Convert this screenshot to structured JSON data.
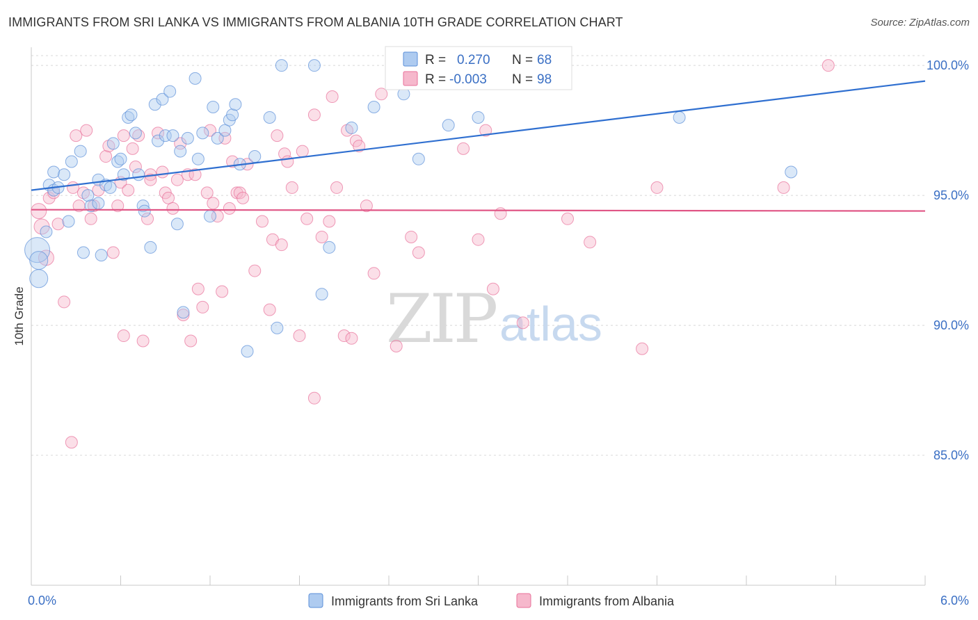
{
  "title": "IMMIGRANTS FROM SRI LANKA VS IMMIGRANTS FROM ALBANIA 10TH GRADE CORRELATION CHART",
  "source": "Source: ZipAtlas.com",
  "watermark": {
    "zip": "ZIP",
    "atlas": "atlas"
  },
  "colors": {
    "blue": "#5b8fd8",
    "blue_fill": "#aecbf0",
    "pink": "#e8709a",
    "pink_fill": "#f6b8cc",
    "axis_text": "#3a6fc4",
    "grid": "#d8d8d8"
  },
  "legend_box": {
    "rows": [
      {
        "r_label": "R =",
        "r_value": "0.270",
        "n_label": "N =",
        "n_value": "68"
      },
      {
        "r_label": "R =",
        "r_value": "-0.003",
        "n_label": "N =",
        "n_value": "98"
      }
    ]
  },
  "chart_data": {
    "type": "scatter",
    "xlabel": "",
    "ylabel": "10th Grade",
    "xlim": [
      0.0,
      6.0
    ],
    "ylim": [
      80.0,
      100.7
    ],
    "x_tick_labels": [
      "0.0%",
      "6.0%"
    ],
    "y_ticks": [
      85.0,
      90.0,
      95.0,
      100.0
    ],
    "y_tick_labels": [
      "85.0%",
      "90.0%",
      "95.0%",
      "100.0%"
    ],
    "grid": true,
    "legend_position": "bottom",
    "series": [
      {
        "name": "Immigrants from Sri Lanka",
        "color": "#5b8fd8",
        "trend": {
          "x": [
            0.0,
            6.0
          ],
          "y": [
            95.2,
            99.4
          ]
        },
        "points": [
          [
            0.04,
            92.9
          ],
          [
            0.05,
            92.5
          ],
          [
            0.05,
            91.8
          ],
          [
            0.1,
            93.6
          ],
          [
            0.12,
            95.4
          ],
          [
            0.15,
            95.2
          ],
          [
            0.15,
            95.9
          ],
          [
            0.22,
            95.8
          ],
          [
            0.25,
            94.0
          ],
          [
            0.27,
            96.3
          ],
          [
            0.33,
            96.7
          ],
          [
            0.35,
            92.8
          ],
          [
            0.38,
            95.0
          ],
          [
            0.4,
            94.6
          ],
          [
            0.45,
            94.7
          ],
          [
            0.45,
            95.6
          ],
          [
            0.47,
            92.7
          ],
          [
            0.5,
            95.4
          ],
          [
            0.53,
            95.3
          ],
          [
            0.55,
            97.0
          ],
          [
            0.58,
            96.3
          ],
          [
            0.6,
            96.4
          ],
          [
            0.62,
            95.8
          ],
          [
            0.65,
            98.0
          ],
          [
            0.67,
            98.1
          ],
          [
            0.7,
            97.4
          ],
          [
            0.72,
            95.8
          ],
          [
            0.75,
            94.6
          ],
          [
            0.76,
            94.4
          ],
          [
            0.8,
            93.0
          ],
          [
            0.83,
            98.5
          ],
          [
            0.85,
            97.1
          ],
          [
            0.88,
            98.7
          ],
          [
            0.9,
            97.3
          ],
          [
            0.93,
            99.0
          ],
          [
            0.95,
            97.3
          ],
          [
            0.98,
            93.9
          ],
          [
            1.0,
            96.7
          ],
          [
            1.02,
            90.5
          ],
          [
            1.05,
            97.2
          ],
          [
            1.1,
            99.5
          ],
          [
            1.12,
            96.4
          ],
          [
            1.15,
            97.4
          ],
          [
            1.2,
            94.2
          ],
          [
            1.22,
            98.4
          ],
          [
            1.25,
            97.2
          ],
          [
            1.3,
            97.5
          ],
          [
            1.33,
            97.9
          ],
          [
            1.35,
            98.1
          ],
          [
            1.37,
            98.5
          ],
          [
            1.4,
            96.2
          ],
          [
            1.45,
            89.0
          ],
          [
            1.5,
            96.5
          ],
          [
            1.6,
            98.0
          ],
          [
            1.65,
            89.9
          ],
          [
            1.68,
            100.0
          ],
          [
            1.9,
            100.0
          ],
          [
            1.95,
            91.2
          ],
          [
            2.0,
            93.0
          ],
          [
            2.15,
            97.6
          ],
          [
            2.3,
            98.4
          ],
          [
            2.5,
            98.9
          ],
          [
            2.6,
            96.4
          ],
          [
            2.8,
            97.7
          ],
          [
            3.0,
            98.0
          ],
          [
            4.35,
            98.0
          ],
          [
            5.1,
            95.9
          ],
          [
            0.18,
            95.3
          ]
        ]
      },
      {
        "name": "Immigrants from Albania",
        "color": "#e8709a",
        "trend": {
          "x": [
            0.0,
            6.0
          ],
          "y": [
            94.45,
            94.4
          ]
        },
        "points": [
          [
            0.05,
            94.4
          ],
          [
            0.07,
            93.8
          ],
          [
            0.1,
            92.6
          ],
          [
            0.12,
            94.9
          ],
          [
            0.15,
            95.1
          ],
          [
            0.18,
            93.9
          ],
          [
            0.22,
            90.9
          ],
          [
            0.28,
            95.3
          ],
          [
            0.32,
            94.6
          ],
          [
            0.35,
            95.1
          ],
          [
            0.37,
            97.5
          ],
          [
            0.4,
            94.1
          ],
          [
            0.42,
            94.6
          ],
          [
            0.45,
            95.2
          ],
          [
            0.5,
            96.5
          ],
          [
            0.52,
            96.9
          ],
          [
            0.55,
            92.8
          ],
          [
            0.58,
            94.6
          ],
          [
            0.6,
            95.5
          ],
          [
            0.62,
            97.3
          ],
          [
            0.65,
            95.2
          ],
          [
            0.68,
            96.8
          ],
          [
            0.7,
            96.1
          ],
          [
            0.72,
            97.3
          ],
          [
            0.75,
            89.4
          ],
          [
            0.78,
            94.1
          ],
          [
            0.8,
            95.8
          ],
          [
            0.85,
            97.4
          ],
          [
            0.88,
            95.9
          ],
          [
            0.9,
            95.1
          ],
          [
            0.92,
            94.9
          ],
          [
            0.95,
            94.5
          ],
          [
            0.98,
            95.6
          ],
          [
            1.0,
            97.0
          ],
          [
            1.02,
            90.4
          ],
          [
            1.05,
            95.8
          ],
          [
            1.07,
            89.4
          ],
          [
            1.1,
            95.8
          ],
          [
            1.12,
            91.4
          ],
          [
            1.15,
            90.7
          ],
          [
            1.18,
            95.1
          ],
          [
            1.2,
            97.5
          ],
          [
            1.22,
            94.7
          ],
          [
            1.25,
            94.2
          ],
          [
            1.28,
            91.3
          ],
          [
            1.3,
            97.2
          ],
          [
            1.33,
            94.5
          ],
          [
            1.35,
            96.3
          ],
          [
            1.38,
            95.1
          ],
          [
            1.4,
            95.1
          ],
          [
            1.42,
            94.9
          ],
          [
            1.45,
            96.2
          ],
          [
            1.5,
            92.1
          ],
          [
            1.55,
            94.0
          ],
          [
            1.6,
            90.6
          ],
          [
            1.62,
            93.3
          ],
          [
            1.65,
            97.3
          ],
          [
            1.68,
            93.1
          ],
          [
            1.7,
            96.6
          ],
          [
            1.72,
            96.3
          ],
          [
            1.75,
            95.3
          ],
          [
            1.8,
            89.6
          ],
          [
            1.82,
            96.7
          ],
          [
            1.85,
            94.1
          ],
          [
            1.9,
            87.2
          ],
          [
            1.95,
            93.4
          ],
          [
            2.0,
            94.0
          ],
          [
            2.02,
            98.8
          ],
          [
            2.05,
            95.3
          ],
          [
            2.1,
            89.6
          ],
          [
            2.12,
            97.5
          ],
          [
            2.15,
            89.5
          ],
          [
            2.18,
            97.1
          ],
          [
            2.2,
            96.9
          ],
          [
            2.25,
            94.6
          ],
          [
            2.3,
            92.0
          ],
          [
            2.35,
            98.9
          ],
          [
            2.45,
            89.2
          ],
          [
            2.5,
            100.0
          ],
          [
            2.55,
            93.4
          ],
          [
            2.6,
            92.8
          ],
          [
            3.0,
            93.3
          ],
          [
            3.05,
            97.5
          ],
          [
            3.1,
            91.4
          ],
          [
            3.15,
            94.3
          ],
          [
            3.3,
            90.1
          ],
          [
            3.6,
            94.1
          ],
          [
            3.75,
            93.2
          ],
          [
            4.1,
            89.1
          ],
          [
            4.2,
            95.3
          ],
          [
            5.35,
            100.0
          ],
          [
            5.05,
            95.3
          ],
          [
            0.27,
            85.5
          ],
          [
            1.9,
            98.1
          ],
          [
            2.9,
            96.8
          ],
          [
            0.3,
            97.3
          ],
          [
            0.62,
            89.6
          ],
          [
            0.8,
            95.6
          ]
        ]
      }
    ]
  }
}
